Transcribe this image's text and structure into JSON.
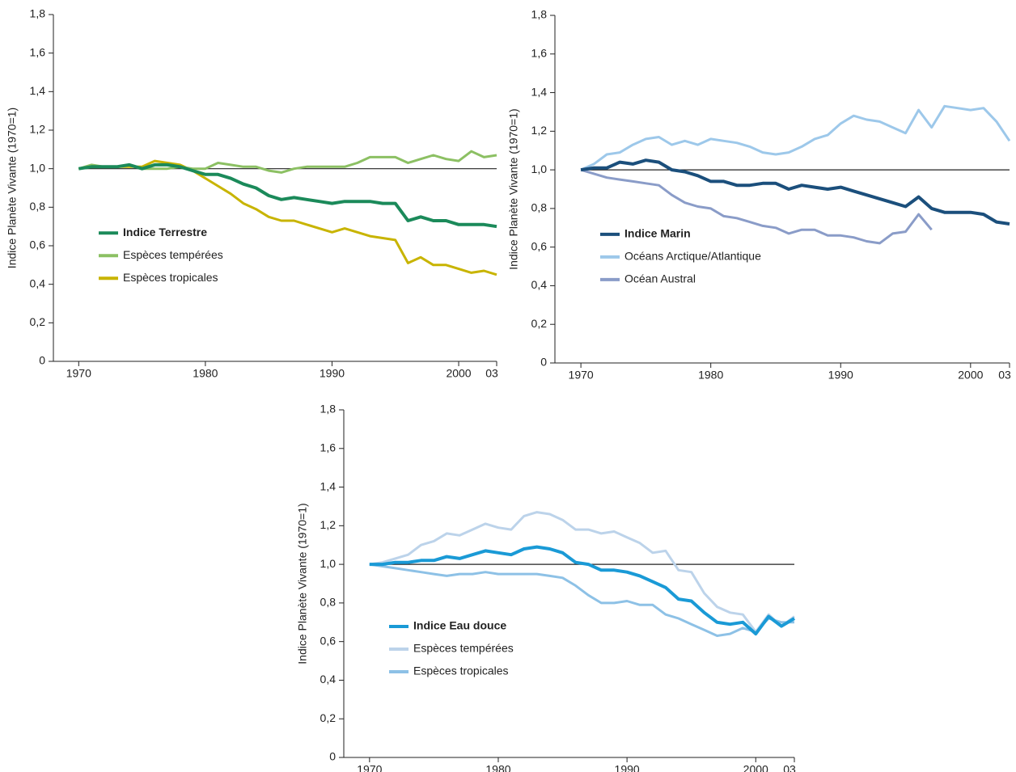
{
  "chart_data": [
    {
      "type": "line",
      "y_label": "Indice Planète Vivante (1970=1)",
      "x": [
        1970,
        1971,
        1972,
        1973,
        1974,
        1975,
        1976,
        1977,
        1978,
        1979,
        1980,
        1981,
        1982,
        1983,
        1984,
        1985,
        1986,
        1987,
        1988,
        1989,
        1990,
        1991,
        1992,
        1993,
        1994,
        1995,
        1996,
        1997,
        1998,
        1999,
        2000,
        2001,
        2002,
        2003
      ],
      "xlim": [
        1968,
        2003
      ],
      "xticks": [
        1970,
        1980,
        1990,
        2000,
        {
          "value": 2003,
          "label": "03"
        }
      ],
      "ylim": [
        0,
        1.8
      ],
      "yticks": [
        0,
        {
          "value": 0.2,
          "label": "0,2"
        },
        {
          "value": 0.4,
          "label": "0,4"
        },
        {
          "value": 0.6,
          "label": "0,6"
        },
        {
          "value": 0.8,
          "label": "0,8"
        },
        {
          "value": 1.0,
          "label": "1,0"
        },
        {
          "value": 1.2,
          "label": "1,2"
        },
        {
          "value": 1.4,
          "label": "1,4"
        },
        {
          "value": 1.6,
          "label": "1,6"
        },
        {
          "value": 1.8,
          "label": "1,8"
        }
      ],
      "reference_line": 1.0,
      "legend_loc": "center left",
      "series": [
        {
          "name": "Indice Terrestre",
          "color": "#1b8a5a",
          "bold": true,
          "values": [
            1.0,
            1.01,
            1.01,
            1.01,
            1.02,
            1.0,
            1.02,
            1.02,
            1.01,
            0.99,
            0.97,
            0.97,
            0.95,
            0.92,
            0.9,
            0.86,
            0.84,
            0.85,
            0.84,
            0.83,
            0.82,
            0.83,
            0.83,
            0.83,
            0.82,
            0.82,
            0.73,
            0.75,
            0.73,
            0.73,
            0.71,
            0.71,
            0.71,
            0.7
          ]
        },
        {
          "name": "Espèces tempérées",
          "color": "#8cc063",
          "values": [
            1.0,
            1.02,
            1.01,
            1.01,
            1.02,
            1.0,
            1.0,
            1.0,
            1.01,
            1.0,
            1.0,
            1.03,
            1.02,
            1.01,
            1.01,
            0.99,
            0.98,
            1.0,
            1.01,
            1.01,
            1.01,
            1.01,
            1.03,
            1.06,
            1.06,
            1.06,
            1.03,
            1.05,
            1.07,
            1.05,
            1.04,
            1.09,
            1.06,
            1.07
          ]
        },
        {
          "name": "Espèces tropicales",
          "color": "#c8b400",
          "values": [
            1.0,
            1.01,
            1.01,
            1.01,
            1.01,
            1.01,
            1.04,
            1.03,
            1.02,
            0.99,
            0.95,
            0.91,
            0.87,
            0.82,
            0.79,
            0.75,
            0.73,
            0.73,
            0.71,
            0.69,
            0.67,
            0.69,
            0.67,
            0.65,
            0.64,
            0.63,
            0.51,
            0.54,
            0.5,
            0.5,
            0.48,
            0.46,
            0.47,
            0.45
          ]
        }
      ]
    },
    {
      "type": "line",
      "y_label": "Indice Planète Vivante (1970=1)",
      "x": [
        1970,
        1971,
        1972,
        1973,
        1974,
        1975,
        1976,
        1977,
        1978,
        1979,
        1980,
        1981,
        1982,
        1983,
        1984,
        1985,
        1986,
        1987,
        1988,
        1989,
        1990,
        1991,
        1992,
        1993,
        1994,
        1995,
        1996,
        1997,
        1998,
        1999,
        2000,
        2001,
        2002,
        2003
      ],
      "xlim": [
        1968,
        2003
      ],
      "xticks": [
        1970,
        1980,
        1990,
        2000,
        {
          "value": 2003,
          "label": "03"
        }
      ],
      "ylim": [
        0,
        1.8
      ],
      "yticks": [
        0,
        {
          "value": 0.2,
          "label": "0,2"
        },
        {
          "value": 0.4,
          "label": "0,4"
        },
        {
          "value": 0.6,
          "label": "0,6"
        },
        {
          "value": 0.8,
          "label": "0,8"
        },
        {
          "value": 1.0,
          "label": "1,0"
        },
        {
          "value": 1.2,
          "label": "1,2"
        },
        {
          "value": 1.4,
          "label": "1,4"
        },
        {
          "value": 1.6,
          "label": "1,6"
        },
        {
          "value": 1.8,
          "label": "1,8"
        }
      ],
      "reference_line": 1.0,
      "legend_loc": "center left",
      "series": [
        {
          "name": "Indice Marin",
          "color": "#1b4f7c",
          "bold": true,
          "values": [
            1.0,
            1.01,
            1.01,
            1.04,
            1.03,
            1.05,
            1.04,
            1.0,
            0.99,
            0.97,
            0.94,
            0.94,
            0.92,
            0.92,
            0.93,
            0.93,
            0.9,
            0.92,
            0.91,
            0.9,
            0.91,
            0.89,
            0.87,
            0.85,
            0.83,
            0.81,
            0.86,
            0.8,
            0.78,
            0.78,
            0.78,
            0.77,
            0.73,
            0.72
          ]
        },
        {
          "name": "Océans Arctique/Atlantique",
          "color": "#9dc8ea",
          "values": [
            1.0,
            1.03,
            1.08,
            1.09,
            1.13,
            1.16,
            1.17,
            1.13,
            1.15,
            1.13,
            1.16,
            1.15,
            1.14,
            1.12,
            1.09,
            1.08,
            1.09,
            1.12,
            1.16,
            1.18,
            1.24,
            1.28,
            1.26,
            1.25,
            1.22,
            1.19,
            1.31,
            1.22,
            1.33,
            1.32,
            1.31,
            1.32,
            1.25,
            1.15
          ]
        },
        {
          "name": "Océan Austral",
          "color": "#8a9cc8",
          "values": [
            1.0,
            0.98,
            0.96,
            0.95,
            0.94,
            0.93,
            0.92,
            0.87,
            0.83,
            0.81,
            0.8,
            0.76,
            0.75,
            0.73,
            0.71,
            0.7,
            0.67,
            0.69,
            0.69,
            0.66,
            0.66,
            0.65,
            0.63,
            0.62,
            0.67,
            0.68,
            0.77,
            0.69,
            null,
            null,
            null,
            null,
            null,
            null
          ]
        }
      ]
    },
    {
      "type": "line",
      "y_label": "Indice Planète Vivante (1970=1)",
      "x": [
        1970,
        1971,
        1972,
        1973,
        1974,
        1975,
        1976,
        1977,
        1978,
        1979,
        1980,
        1981,
        1982,
        1983,
        1984,
        1985,
        1986,
        1987,
        1988,
        1989,
        1990,
        1991,
        1992,
        1993,
        1994,
        1995,
        1996,
        1997,
        1998,
        1999,
        2000,
        2001,
        2002,
        2003
      ],
      "xlim": [
        1968,
        2003
      ],
      "xticks": [
        1970,
        1980,
        1990,
        2000,
        {
          "value": 2003,
          "label": "03"
        }
      ],
      "ylim": [
        0,
        1.8
      ],
      "yticks": [
        0,
        {
          "value": 0.2,
          "label": "0,2"
        },
        {
          "value": 0.4,
          "label": "0,4"
        },
        {
          "value": 0.6,
          "label": "0,6"
        },
        {
          "value": 0.8,
          "label": "0,8"
        },
        {
          "value": 1.0,
          "label": "1,0"
        },
        {
          "value": 1.2,
          "label": "1,2"
        },
        {
          "value": 1.4,
          "label": "1,4"
        },
        {
          "value": 1.6,
          "label": "1,6"
        },
        {
          "value": 1.8,
          "label": "1,8"
        }
      ],
      "reference_line": 1.0,
      "legend_loc": "lower left",
      "series": [
        {
          "name": "Indice Eau douce",
          "color": "#1a9ad6",
          "bold": true,
          "values": [
            1.0,
            1.0,
            1.01,
            1.01,
            1.02,
            1.02,
            1.04,
            1.03,
            1.05,
            1.07,
            1.06,
            1.05,
            1.08,
            1.09,
            1.08,
            1.06,
            1.01,
            1.0,
            0.97,
            0.97,
            0.96,
            0.94,
            0.91,
            0.88,
            0.82,
            0.81,
            0.75,
            0.7,
            0.69,
            0.7,
            0.64,
            0.73,
            0.68,
            0.72
          ]
        },
        {
          "name": "Espèces tempérées",
          "color": "#bcd3ea",
          "values": [
            1.0,
            1.01,
            1.03,
            1.05,
            1.1,
            1.12,
            1.16,
            1.15,
            1.18,
            1.21,
            1.19,
            1.18,
            1.25,
            1.27,
            1.26,
            1.23,
            1.18,
            1.18,
            1.16,
            1.17,
            1.14,
            1.11,
            1.06,
            1.07,
            0.97,
            0.96,
            0.85,
            0.78,
            0.75,
            0.74,
            0.65,
            0.74,
            0.68,
            0.73
          ]
        },
        {
          "name": "Espèces tropicales",
          "color": "#8dc1e6",
          "values": [
            1.0,
            0.99,
            0.98,
            0.97,
            0.96,
            0.95,
            0.94,
            0.95,
            0.95,
            0.96,
            0.95,
            0.95,
            0.95,
            0.95,
            0.94,
            0.93,
            0.89,
            0.84,
            0.8,
            0.8,
            0.81,
            0.79,
            0.79,
            0.74,
            0.72,
            0.69,
            0.66,
            0.63,
            0.64,
            0.67,
            0.65,
            0.72,
            0.7,
            0.7
          ]
        }
      ]
    }
  ]
}
